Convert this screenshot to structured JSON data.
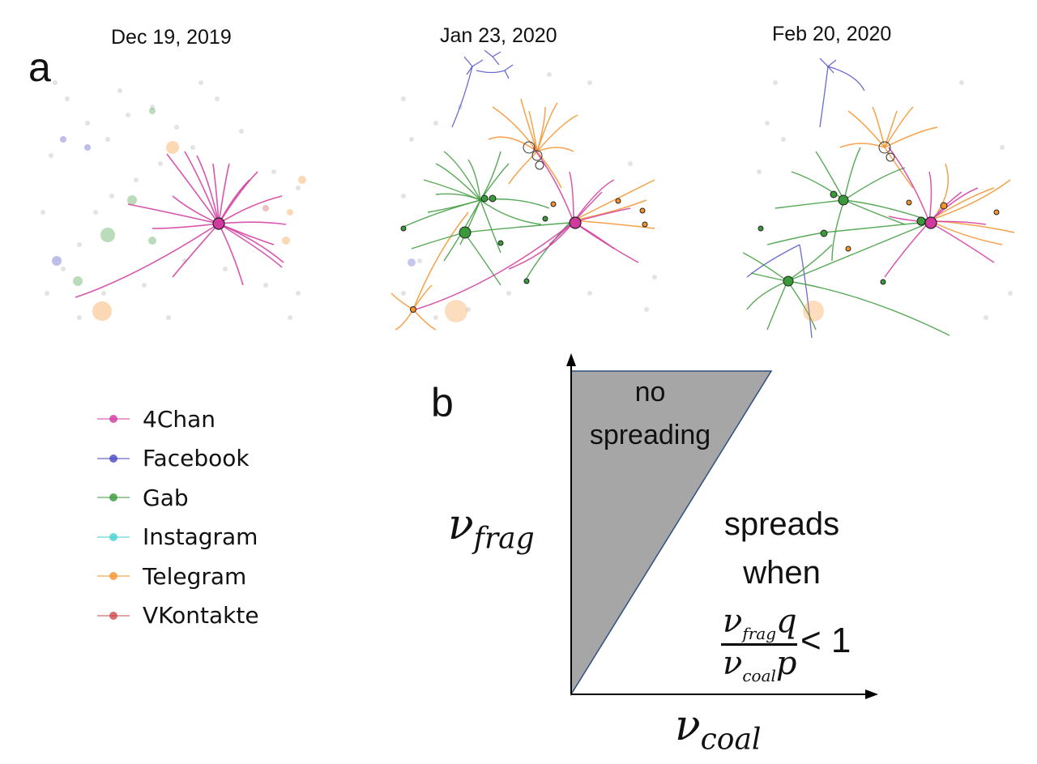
{
  "panel_a": {
    "label": "a",
    "snapshots": [
      {
        "date": "Dec 19, 2019",
        "visible_platforms": [
          "4Chan"
        ]
      },
      {
        "date": "Jan 23, 2020",
        "visible_platforms": [
          "Facebook",
          "Gab",
          "Telegram",
          "4Chan"
        ]
      },
      {
        "date": "Feb 20, 2020",
        "visible_platforms": [
          "Facebook",
          "Gab",
          "Telegram",
          "4Chan"
        ]
      }
    ]
  },
  "legend": {
    "items": [
      {
        "label": "4Chan",
        "color": "#d1399f"
      },
      {
        "label": "Facebook",
        "color": "#4646c4"
      },
      {
        "label": "Gab",
        "color": "#3a9a3a"
      },
      {
        "label": "Instagram",
        "color": "#45d0d0"
      },
      {
        "label": "Telegram",
        "color": "#f5922a"
      },
      {
        "label": "VKontakte",
        "color": "#cc4b4b"
      }
    ]
  },
  "panel_b": {
    "label": "b",
    "region_no_spread": [
      "no",
      "spreading"
    ],
    "region_spread": [
      "spreads",
      "when"
    ],
    "y_axis": {
      "symbol": "ν",
      "subscript": "frag"
    },
    "x_axis": {
      "symbol": "ν",
      "subscript": "coal"
    },
    "condition": {
      "num_symbol": "ν",
      "num_sub": "frag",
      "num_var": "q",
      "den_symbol": "ν",
      "den_sub": "coal",
      "den_var": "p",
      "relation": "< 1"
    },
    "shade_color": "#a6a6a6"
  }
}
